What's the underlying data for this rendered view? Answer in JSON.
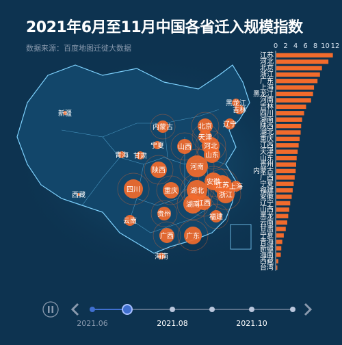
{
  "title": "2021年6月至11月中国各省迁入规模指数",
  "subtitle": "数据来源：百度地图迁徙大数据",
  "colors": {
    "background": "#0d3350",
    "accent": "#f26b2c",
    "map_fill": "#12466a",
    "map_stroke": "#7fd3ff",
    "timeline": "#3f6fcf",
    "timeline_dim": "#8a9aae"
  },
  "timeline": {
    "labels": [
      "2021.06",
      "2021.08",
      "2021.10"
    ],
    "current_label": "2021.06",
    "current_index": 1,
    "play_icon": "pause-icon",
    "prev_icon": "chevron-left-icon",
    "next_icon": "chevron-right-icon"
  },
  "map_labels": [
    "新疆",
    "西藏",
    "青海",
    "甘肃",
    "内蒙古",
    "宁夏",
    "陕西",
    "山西",
    "北京",
    "天津",
    "河北",
    "辽宁",
    "吉林",
    "黑龙江",
    "山东",
    "河南",
    "安徽",
    "江苏",
    "上海",
    "湖北",
    "浙江",
    "四川",
    "重庆",
    "贵州",
    "湖南",
    "江西",
    "福建",
    "云南",
    "广西",
    "广东",
    "海南"
  ],
  "chart_data": {
    "type": "bar",
    "orientation": "horizontal",
    "categories": [
      "江苏",
      "河北",
      "北京",
      "浙江",
      "广东",
      "上海",
      "黑龙江",
      "河南",
      "吉林",
      "四川",
      "湖南",
      "陕西",
      "湖北",
      "重庆",
      "江西",
      "天津",
      "山东",
      "贵州",
      "内蒙古",
      "广西",
      "宁夏",
      "福建",
      "安徽",
      "辽宁",
      "山西",
      "黑龙",
      "云南",
      "甘肃",
      "宁夏",
      "青海",
      "新疆",
      "海南",
      "西藏",
      "台湾"
    ],
    "values": [
      11.4,
      10.5,
      9.2,
      8.8,
      8.3,
      7.6,
      7.4,
      7.0,
      6.0,
      5.6,
      5.2,
      5.0,
      4.9,
      4.7,
      4.5,
      4.3,
      4.1,
      4.0,
      3.9,
      3.7,
      3.5,
      3.3,
      3.1,
      2.8,
      2.6,
      2.4,
      2.2,
      1.9,
      1.5,
      1.2,
      1.0,
      0.9,
      0.4,
      0.2
    ],
    "xaxis_ticks": [
      "0",
      "2",
      "4",
      "6",
      "8",
      "10",
      "12"
    ],
    "xlim": [
      0,
      12
    ],
    "grid": false
  }
}
